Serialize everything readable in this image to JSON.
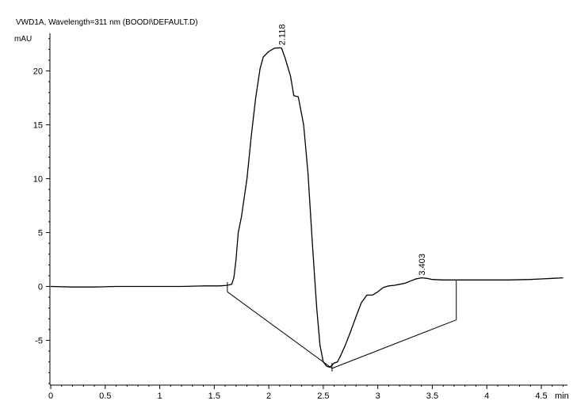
{
  "chart_data": {
    "type": "line",
    "title": "VWD1A, Wavelength=311 nm (BOODI\\DEFAULT.D)",
    "ylabel": "mAU",
    "xlabel": "min",
    "xlim": [
      0,
      4.7
    ],
    "ylim": [
      -9,
      23
    ],
    "x_ticks": [
      0,
      0.5,
      1,
      1.5,
      2,
      2.5,
      3,
      3.5,
      4,
      4.5
    ],
    "x_tick_labels": [
      "0",
      "0.5",
      "1",
      "1.5",
      "2",
      "2.5",
      "3",
      "3.5",
      "4",
      "4.5"
    ],
    "y_ticks": [
      -5,
      0,
      5,
      10,
      15,
      20
    ],
    "y_tick_labels": [
      "-5",
      "0",
      "5",
      "10",
      "15",
      "20"
    ],
    "grid": false,
    "series": [
      {
        "color": "#000000",
        "x": [
          0,
          0.2,
          0.4,
          0.6,
          0.8,
          1.0,
          1.2,
          1.4,
          1.55,
          1.62,
          1.66,
          1.68,
          1.7,
          1.72,
          1.75,
          1.8,
          1.84,
          1.88,
          1.92,
          1.95,
          2.0,
          2.05,
          2.1,
          2.118,
          2.15,
          2.2,
          2.23,
          2.27,
          2.32,
          2.36,
          2.4,
          2.44,
          2.47,
          2.5,
          2.53,
          2.56,
          2.58,
          2.6,
          2.63,
          2.66,
          2.7,
          2.75,
          2.8,
          2.85,
          2.9,
          2.95,
          3.0,
          3.05,
          3.1,
          3.15,
          3.2,
          3.25,
          3.3,
          3.35,
          3.403,
          3.45,
          3.5,
          3.6,
          3.7,
          3.8,
          4.0,
          4.2,
          4.4,
          4.5,
          4.6,
          4.7
        ],
        "y": [
          0,
          -0.05,
          -0.05,
          0,
          0,
          0,
          0,
          0.05,
          0.05,
          0.1,
          0.2,
          0.8,
          2.5,
          5,
          6.5,
          10,
          14,
          17.5,
          20.2,
          21.3,
          21.8,
          22.1,
          22.15,
          22.1,
          21.2,
          19.5,
          17.7,
          17.6,
          15,
          10.5,
          4,
          -2,
          -5.5,
          -7,
          -7.4,
          -7.5,
          -7.3,
          -7.1,
          -7.0,
          -6.4,
          -5.5,
          -4.2,
          -2.8,
          -1.5,
          -0.8,
          -0.8,
          -0.5,
          -0.1,
          0.05,
          0.1,
          0.2,
          0.3,
          0.5,
          0.7,
          0.8,
          0.75,
          0.65,
          0.6,
          0.6,
          0.6,
          0.6,
          0.6,
          0.65,
          0.7,
          0.75,
          0.8
        ]
      }
    ],
    "baselines": [
      {
        "x": [
          1.62,
          2.58
        ],
        "y": [
          -0.5,
          -7.6
        ]
      },
      {
        "x": [
          2.58,
          3.72
        ],
        "y": [
          -7.6,
          -3.1
        ]
      }
    ],
    "marker_lines": [
      {
        "x": [
          1.62,
          1.62
        ],
        "y": [
          0.4,
          -0.5
        ]
      },
      {
        "x": [
          2.58,
          2.58
        ],
        "y": [
          -7.1,
          -7.9
        ]
      },
      {
        "x": [
          3.72,
          3.72
        ],
        "y": [
          0.6,
          -3.1
        ]
      }
    ],
    "annotations": [
      {
        "x": 2.118,
        "y": 22.15,
        "text": "2.118"
      },
      {
        "x": 3.403,
        "y": 0.8,
        "text": "3.403"
      }
    ]
  }
}
